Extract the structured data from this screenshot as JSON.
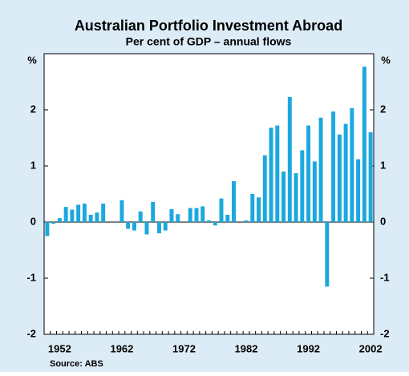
{
  "chart_data": {
    "type": "bar",
    "title": "Australian Portfolio Investment Abroad",
    "subtitle": "Per cent of GDP – annual flows",
    "ylabel": "%",
    "y2label": "%",
    "source": "Source: ABS",
    "categories": [
      null,
      null,
      "1952",
      null,
      null,
      null,
      null,
      null,
      null,
      null,
      null,
      null,
      "1962",
      null,
      null,
      null,
      null,
      null,
      null,
      null,
      null,
      null,
      "1972",
      null,
      null,
      null,
      null,
      null,
      null,
      null,
      null,
      null,
      "1982",
      null,
      null,
      null,
      null,
      null,
      null,
      null,
      null,
      null,
      "1992",
      null,
      null,
      null,
      null,
      null,
      null,
      null,
      null,
      null,
      "2002"
    ],
    "values": [
      -0.25,
      -0.03,
      0.07,
      0.27,
      0.22,
      0.31,
      0.33,
      0.13,
      0.17,
      0.33,
      0,
      0,
      0.39,
      -0.12,
      -0.15,
      0.19,
      -0.22,
      0.36,
      -0.2,
      -0.15,
      0.23,
      0.14,
      0,
      0.25,
      0.25,
      0.28,
      0.03,
      -0.06,
      0.42,
      0.13,
      0.73,
      0,
      0.03,
      0.5,
      0.44,
      1.19,
      1.68,
      1.72,
      0.9,
      2.23,
      0.87,
      1.28,
      1.72,
      1.08,
      1.86,
      -1.15,
      1.97,
      1.56,
      1.75,
      2.03,
      1.12,
      2.77,
      1.6
    ],
    "color": "#1ba8de",
    "ylim": [
      -2,
      3
    ],
    "yticks": [
      -2,
      -1,
      0,
      1,
      2
    ],
    "grid": false
  }
}
